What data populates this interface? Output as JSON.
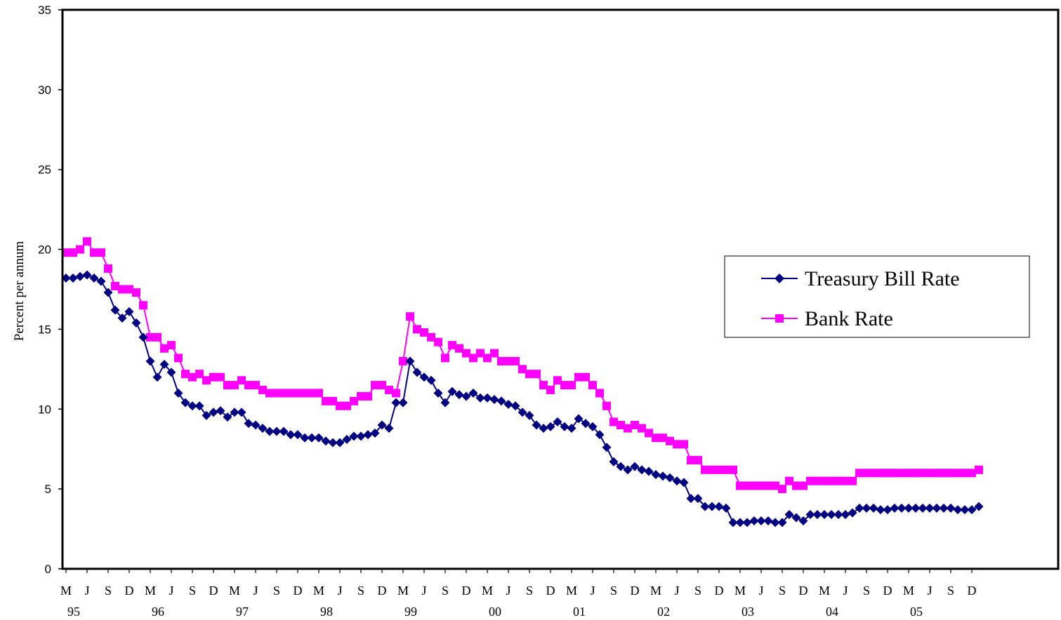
{
  "chart_data": {
    "type": "line",
    "title": "",
    "xlabel": "",
    "ylabel": "Percent per annum",
    "ylim": [
      0,
      35
    ],
    "yticks": [
      0,
      5,
      10,
      15,
      20,
      25,
      30,
      35
    ],
    "ytick_labels": [
      "0",
      "5",
      "10",
      "15",
      "20",
      "25",
      "30",
      "35"
    ],
    "x_start": "1995-03",
    "x_end": "2005-12",
    "xtick_labels": [
      {
        "month": "M",
        "year": "95"
      },
      {
        "month": "J",
        "year": ""
      },
      {
        "month": "S",
        "year": ""
      },
      {
        "month": "D",
        "year": ""
      },
      {
        "month": "M",
        "year": "96"
      },
      {
        "month": "J",
        "year": ""
      },
      {
        "month": "S",
        "year": ""
      },
      {
        "month": "D",
        "year": ""
      },
      {
        "month": "M",
        "year": "97"
      },
      {
        "month": "J",
        "year": ""
      },
      {
        "month": "S",
        "year": ""
      },
      {
        "month": "D",
        "year": ""
      },
      {
        "month": "M",
        "year": "98"
      },
      {
        "month": "J",
        "year": ""
      },
      {
        "month": "S",
        "year": ""
      },
      {
        "month": "D",
        "year": ""
      },
      {
        "month": "M",
        "year": "99"
      },
      {
        "month": "J",
        "year": ""
      },
      {
        "month": "S",
        "year": ""
      },
      {
        "month": "D",
        "year": ""
      },
      {
        "month": "M",
        "year": "00"
      },
      {
        "month": "J",
        "year": ""
      },
      {
        "month": "S",
        "year": ""
      },
      {
        "month": "D",
        "year": ""
      },
      {
        "month": "M",
        "year": "01"
      },
      {
        "month": "J",
        "year": ""
      },
      {
        "month": "S",
        "year": ""
      },
      {
        "month": "D",
        "year": ""
      },
      {
        "month": "M",
        "year": "02"
      },
      {
        "month": "J",
        "year": ""
      },
      {
        "month": "S",
        "year": ""
      },
      {
        "month": "D",
        "year": ""
      },
      {
        "month": "M",
        "year": "03"
      },
      {
        "month": "J",
        "year": ""
      },
      {
        "month": "S",
        "year": ""
      },
      {
        "month": "D",
        "year": ""
      },
      {
        "month": "M",
        "year": "04"
      },
      {
        "month": "J",
        "year": ""
      },
      {
        "month": "S",
        "year": ""
      },
      {
        "month": "D",
        "year": ""
      },
      {
        "month": "M",
        "year": "05"
      },
      {
        "month": "J",
        "year": ""
      },
      {
        "month": "S",
        "year": ""
      },
      {
        "month": "D",
        "year": ""
      }
    ],
    "grid": false,
    "legend": {
      "position": "right-center"
    },
    "series": [
      {
        "name": "Treasury Bill Rate",
        "color": "#000080",
        "marker": "diamond",
        "values": [
          18.2,
          18.2,
          18.3,
          18.4,
          18.2,
          18.0,
          17.3,
          16.2,
          15.7,
          16.1,
          15.4,
          14.5,
          13.0,
          12.0,
          12.8,
          12.3,
          11.0,
          10.4,
          10.2,
          10.2,
          9.6,
          9.8,
          9.9,
          9.5,
          9.8,
          9.8,
          9.1,
          9.0,
          8.8,
          8.6,
          8.6,
          8.6,
          8.4,
          8.4,
          8.2,
          8.2,
          8.2,
          8.0,
          7.9,
          7.9,
          8.1,
          8.3,
          8.3,
          8.4,
          8.5,
          9.0,
          8.8,
          10.4,
          10.4,
          13.0,
          12.3,
          12.0,
          11.8,
          11.0,
          10.4,
          11.1,
          10.9,
          10.8,
          11.0,
          10.7,
          10.7,
          10.6,
          10.5,
          10.3,
          10.2,
          9.8,
          9.6,
          9.0,
          8.8,
          8.9,
          9.2,
          8.9,
          8.8,
          9.4,
          9.1,
          8.9,
          8.4,
          7.6,
          6.7,
          6.4,
          6.2,
          6.4,
          6.2,
          6.1,
          5.9,
          5.8,
          5.7,
          5.5,
          5.4,
          4.4,
          4.4,
          3.9,
          3.9,
          3.9,
          3.8,
          2.9,
          2.9,
          2.9,
          3.0,
          3.0,
          3.0,
          2.9,
          2.9,
          3.4,
          3.2,
          3.0,
          3.4,
          3.4,
          3.4,
          3.4,
          3.4,
          3.4,
          3.5,
          3.8,
          3.8,
          3.8,
          3.7,
          3.7,
          3.8,
          3.8,
          3.8,
          3.8,
          3.8,
          3.8,
          3.8,
          3.8,
          3.8,
          3.7,
          3.7,
          3.7,
          3.9
        ]
      },
      {
        "name": "Bank Rate",
        "color": "#ff00ff",
        "marker": "square",
        "values": [
          19.8,
          19.8,
          20.0,
          20.5,
          19.8,
          19.8,
          18.8,
          17.7,
          17.5,
          17.5,
          17.3,
          16.5,
          14.5,
          14.5,
          13.8,
          14.0,
          13.2,
          12.2,
          12.0,
          12.2,
          11.8,
          12.0,
          12.0,
          11.5,
          11.5,
          11.8,
          11.5,
          11.5,
          11.2,
          11.0,
          11.0,
          11.0,
          11.0,
          11.0,
          11.0,
          11.0,
          11.0,
          10.5,
          10.5,
          10.2,
          10.2,
          10.5,
          10.8,
          10.8,
          11.5,
          11.5,
          11.2,
          11.0,
          13.0,
          15.8,
          15.0,
          14.8,
          14.5,
          14.2,
          13.2,
          14.0,
          13.8,
          13.5,
          13.2,
          13.5,
          13.2,
          13.5,
          13.0,
          13.0,
          13.0,
          12.5,
          12.2,
          12.2,
          11.5,
          11.2,
          11.8,
          11.5,
          11.5,
          12.0,
          12.0,
          11.5,
          11.0,
          10.2,
          9.2,
          9.0,
          8.8,
          9.0,
          8.8,
          8.5,
          8.2,
          8.2,
          8.0,
          7.8,
          7.8,
          6.8,
          6.8,
          6.2,
          6.2,
          6.2,
          6.2,
          6.2,
          5.2,
          5.2,
          5.2,
          5.2,
          5.2,
          5.2,
          5.0,
          5.5,
          5.2,
          5.2,
          5.5,
          5.5,
          5.5,
          5.5,
          5.5,
          5.5,
          5.5,
          6.0,
          6.0,
          6.0,
          6.0,
          6.0,
          6.0,
          6.0,
          6.0,
          6.0,
          6.0,
          6.0,
          6.0,
          6.0,
          6.0,
          6.0,
          6.0,
          6.0,
          6.2
        ]
      }
    ]
  }
}
